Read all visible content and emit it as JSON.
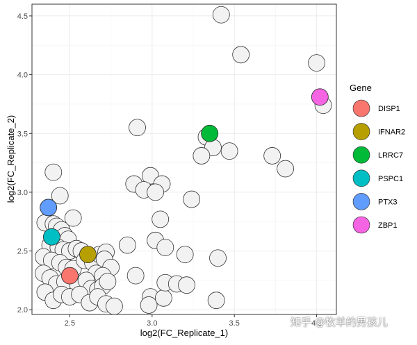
{
  "chart_data": {
    "type": "scatter",
    "xlabel": "log2(FC_Replicate_1)",
    "ylabel": "log2(FC_Replicate_2)",
    "xlim": [
      2.27,
      4.12
    ],
    "ylim": [
      1.96,
      4.6
    ],
    "x_ticks": [
      "2.5",
      "3.0",
      "3.5",
      "4.0"
    ],
    "x_tick_values": [
      2.5,
      3.0,
      3.5,
      4.0
    ],
    "y_ticks": [
      "2.0",
      "2.5",
      "3.0",
      "3.5",
      "4.0",
      "4.5"
    ],
    "y_tick_values": [
      2.0,
      2.5,
      3.0,
      3.5,
      4.0,
      4.5
    ],
    "grid": true,
    "background_points": [
      [
        3.42,
        4.51
      ],
      [
        3.54,
        4.17
      ],
      [
        4.0,
        4.1
      ],
      [
        4.04,
        3.74
      ],
      [
        3.33,
        3.47
      ],
      [
        3.37,
        3.38
      ],
      [
        3.47,
        3.35
      ],
      [
        3.3,
        3.31
      ],
      [
        3.73,
        3.31
      ],
      [
        3.81,
        3.2
      ],
      [
        2.91,
        3.55
      ],
      [
        2.99,
        3.14
      ],
      [
        2.89,
        3.07
      ],
      [
        2.95,
        3.02
      ],
      [
        3.06,
        3.07
      ],
      [
        3.02,
        3.0
      ],
      [
        3.24,
        2.94
      ],
      [
        3.05,
        2.77
      ],
      [
        2.85,
        2.55
      ],
      [
        3.02,
        2.59
      ],
      [
        3.08,
        2.53
      ],
      [
        3.2,
        2.47
      ],
      [
        3.4,
        2.44
      ],
      [
        2.4,
        3.17
      ],
      [
        2.44,
        2.97
      ],
      [
        2.35,
        2.74
      ],
      [
        2.4,
        2.73
      ],
      [
        2.42,
        2.71
      ],
      [
        2.45,
        2.68
      ],
      [
        2.47,
        2.63
      ],
      [
        2.52,
        2.78
      ],
      [
        2.49,
        2.6
      ],
      [
        2.38,
        2.55
      ],
      [
        2.43,
        2.53
      ],
      [
        2.46,
        2.51
      ],
      [
        2.5,
        2.5
      ],
      [
        2.54,
        2.52
      ],
      [
        2.57,
        2.5
      ],
      [
        2.34,
        2.45
      ],
      [
        2.39,
        2.42
      ],
      [
        2.44,
        2.4
      ],
      [
        2.48,
        2.36
      ],
      [
        2.52,
        2.35
      ],
      [
        2.59,
        2.42
      ],
      [
        2.64,
        2.4
      ],
      [
        2.68,
        2.47
      ],
      [
        2.72,
        2.49
      ],
      [
        2.71,
        2.43
      ],
      [
        2.75,
        2.36
      ],
      [
        2.66,
        2.31
      ],
      [
        2.7,
        2.29
      ],
      [
        2.34,
        2.31
      ],
      [
        2.38,
        2.27
      ],
      [
        2.42,
        2.22
      ],
      [
        2.47,
        2.24
      ],
      [
        2.55,
        2.21
      ],
      [
        2.6,
        2.25
      ],
      [
        2.63,
        2.18
      ],
      [
        2.67,
        2.17
      ],
      [
        2.7,
        2.2
      ],
      [
        2.73,
        2.24
      ],
      [
        2.35,
        2.15
      ],
      [
        2.4,
        2.08
      ],
      [
        2.45,
        2.13
      ],
      [
        2.5,
        2.11
      ],
      [
        2.56,
        2.13
      ],
      [
        2.62,
        2.06
      ],
      [
        2.67,
        2.11
      ],
      [
        2.72,
        2.05
      ],
      [
        2.77,
        2.03
      ],
      [
        2.9,
        2.29
      ],
      [
        2.99,
        2.11
      ],
      [
        2.98,
        2.04
      ],
      [
        3.07,
        2.1
      ],
      [
        3.08,
        2.23
      ],
      [
        3.15,
        2.22
      ],
      [
        3.21,
        2.21
      ],
      [
        3.39,
        2.08
      ]
    ],
    "series": [
      {
        "name": "DISP1",
        "color": "#F8766D",
        "x": [
          2.5
        ],
        "y": [
          2.29
        ]
      },
      {
        "name": "IFNAR2",
        "color": "#B79F00",
        "x": [
          2.61
        ],
        "y": [
          2.47
        ]
      },
      {
        "name": "LRRC7",
        "color": "#00BA38",
        "x": [
          3.35
        ],
        "y": [
          3.5
        ]
      },
      {
        "name": "PSPC1",
        "color": "#00BFC4",
        "x": [
          2.39
        ],
        "y": [
          2.62
        ]
      },
      {
        "name": "PTX3",
        "color": "#619CFF",
        "x": [
          2.37
        ],
        "y": [
          2.87
        ]
      },
      {
        "name": "ZBP1",
        "color": "#F564E3",
        "x": [
          4.02
        ],
        "y": [
          3.81
        ]
      }
    ],
    "legend": {
      "title": "Gene",
      "position": "right"
    }
  },
  "watermark": "知乎 @牧羊的男孩儿"
}
